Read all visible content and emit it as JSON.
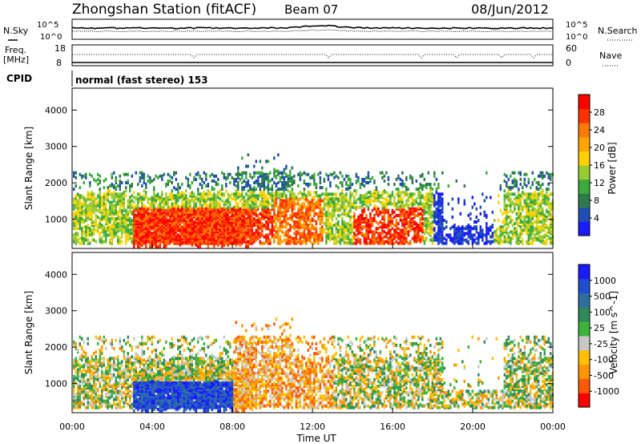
{
  "header": {
    "station": "Zhongshan Station (fitACF)",
    "beam": "Beam 07",
    "date": "08/Jun/2012"
  },
  "nsky_panel": {
    "left_label": "N.Sky",
    "right_label": "N.Search",
    "ticks": [
      "10^5",
      "10^0"
    ]
  },
  "freq_panel": {
    "left_label_1": "Freq.",
    "left_label_2": "[MHz]",
    "right_label": "Nave",
    "left_ticks": [
      "18",
      "8"
    ],
    "right_ticks": [
      "60",
      "0"
    ]
  },
  "cpid": {
    "label": "CPID",
    "mode": "normal (fast stereo) 153"
  },
  "colors": {
    "power": [
      "#1a1aff",
      "#1f4fb5",
      "#2f7a4a",
      "#3caa3c",
      "#99cc33",
      "#ffd200",
      "#ffa500",
      "#ff7a00",
      "#ff3300",
      "#ff0000"
    ],
    "velocity": [
      "#ff0000",
      "#ff5a00",
      "#ff9500",
      "#ffc000",
      "#c8c8c8",
      "#3cb43c",
      "#2f8a5a",
      "#2f6fa0",
      "#1f4fd0",
      "#1a1aff"
    ]
  },
  "chart_data": [
    {
      "type": "heatmap",
      "name_key": "power-panel",
      "ylabel": "Slant Range [km]",
      "yticks": [
        1000,
        2000,
        3000,
        4000
      ],
      "ylim": [
        200,
        4600
      ],
      "xlim_hours": [
        0,
        24
      ],
      "colorbar_label": "Power [dB]",
      "colorbar_ticks": [
        "4",
        "8",
        "12",
        "16",
        "20",
        "24",
        "28"
      ],
      "colorbar_range": [
        0,
        32
      ]
    },
    {
      "type": "heatmap",
      "name_key": "velocity-panel",
      "ylabel": "Slant Range [km]",
      "yticks": [
        1000,
        2000,
        3000,
        4000
      ],
      "ylim": [
        200,
        4600
      ],
      "xlim_hours": [
        0,
        24
      ],
      "colorbar_label": "Velocity [m s^-1]",
      "colorbar_ticks": [
        "-1000",
        "-500",
        "-100",
        "-25",
        "25",
        "100",
        "500",
        "1000"
      ]
    }
  ],
  "x_axis": {
    "ticks": [
      "00:00",
      "04:00",
      "08:00",
      "12:00",
      "16:00",
      "20:00",
      "00:00"
    ],
    "label": "Time UT"
  }
}
